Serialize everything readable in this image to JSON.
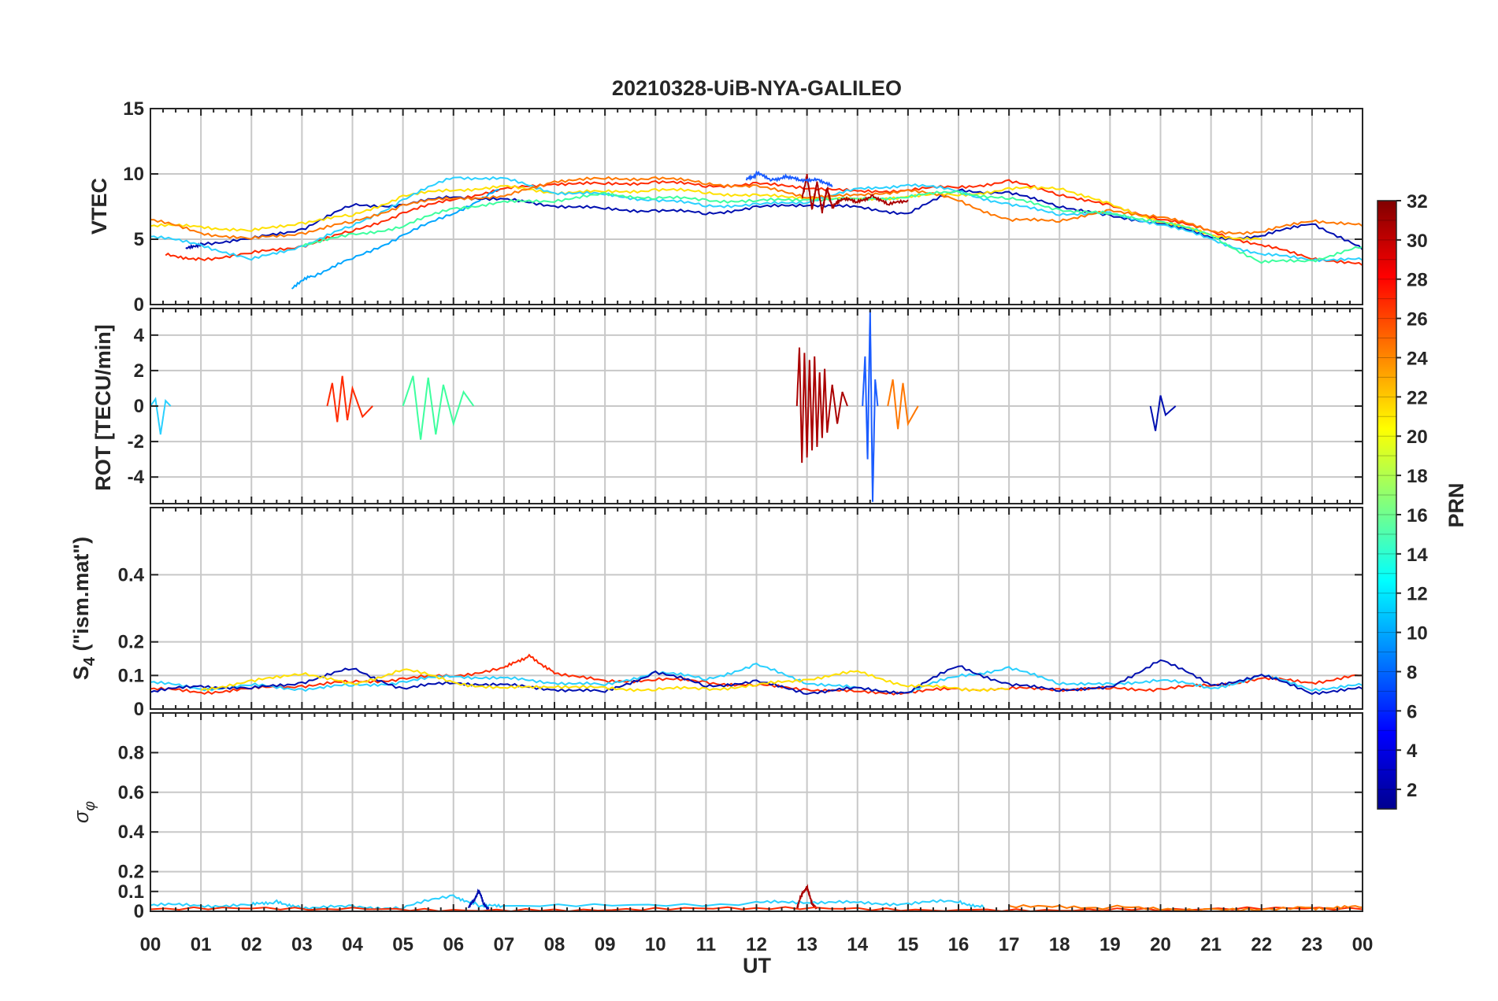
{
  "chart_data": {
    "type": "line",
    "title": "20210328-UiB-NYA-GALILEO",
    "xlabel": "UT",
    "x_ticks": [
      "00",
      "01",
      "02",
      "03",
      "04",
      "05",
      "06",
      "07",
      "08",
      "09",
      "10",
      "11",
      "12",
      "13",
      "14",
      "15",
      "16",
      "17",
      "18",
      "19",
      "20",
      "21",
      "22",
      "23",
      "00"
    ],
    "xlim": [
      0,
      24
    ],
    "colorbar": {
      "label": "PRN",
      "range": [
        1,
        32
      ],
      "ticks": [
        "2",
        "4",
        "6",
        "8",
        "10",
        "12",
        "14",
        "16",
        "18",
        "20",
        "22",
        "24",
        "26",
        "28",
        "30",
        "32"
      ],
      "colormap": "jet"
    },
    "panels": [
      {
        "name": "vtec",
        "ylabel": "VTEC",
        "ylim": [
          0,
          15
        ],
        "y_ticks": [
          "0",
          "5",
          "10",
          "15"
        ],
        "series": [
          {
            "color": "#ff2a00",
            "x": [
              0.3,
              1,
              2,
              3,
              4,
              5,
              6,
              7,
              8,
              9,
              10,
              11,
              12,
              13,
              14,
              15,
              16,
              17,
              18,
              19,
              20,
              21,
              22,
              23,
              24
            ],
            "y": [
              3.8,
              3.5,
              3.9,
              4.5,
              5.6,
              7.0,
              8.1,
              8.8,
              9.3,
              9.2,
              9.4,
              9.1,
              9.2,
              9.0,
              8.6,
              8.8,
              9.0,
              9.4,
              8.5,
              7.5,
              6.6,
              5.6,
              4.5,
              3.6,
              3.0
            ]
          },
          {
            "color": "#00a6ff",
            "x": [
              2.8,
              3.2,
              4,
              5,
              6,
              6.9
            ],
            "y": [
              1.3,
              2.2,
              3.5,
              5.3,
              7.0,
              8.8
            ]
          },
          {
            "color": "#000fb0",
            "x": [
              0.7,
              1,
              2,
              3,
              4,
              5,
              6,
              7,
              8,
              9,
              10,
              11,
              12,
              13,
              14,
              15,
              16,
              17,
              18,
              19,
              20,
              21,
              22,
              23,
              24
            ],
            "y": [
              4.2,
              4.7,
              5.0,
              5.8,
              7.6,
              7.6,
              8.3,
              8.0,
              7.6,
              7.3,
              7.2,
              7.0,
              7.4,
              7.7,
              7.4,
              7.0,
              8.8,
              8.5,
              7.6,
              6.7,
              6.3,
              5.1,
              5.2,
              6.3,
              4.2
            ]
          },
          {
            "color": "#ffe000",
            "x": [
              0,
              1,
              2,
              3,
              4,
              5,
              6,
              7,
              8,
              9,
              10,
              11,
              12,
              13,
              14,
              15,
              16,
              17,
              18,
              19,
              20,
              21,
              22
            ],
            "y": [
              6.0,
              6.0,
              5.6,
              6.3,
              6.8,
              8.3,
              8.8,
              9.0,
              8.6,
              8.6,
              8.8,
              8.6,
              8.3,
              8.2,
              8.0,
              8.3,
              8.4,
              8.8,
              9.0,
              7.6,
              6.4,
              5.3,
              5.0
            ]
          },
          {
            "color": "#2ad0ff",
            "x": [
              0,
              1,
              2,
              3,
              4,
              5,
              6,
              7,
              8,
              9,
              10,
              11,
              12,
              13,
              14,
              15,
              16,
              17,
              18,
              19,
              20,
              21,
              22,
              23,
              24
            ],
            "y": [
              5.2,
              4.6,
              3.4,
              4.5,
              6.0,
              8.0,
              9.8,
              9.6,
              8.6,
              8.4,
              8.0,
              7.6,
              7.6,
              7.9,
              8.8,
              9.2,
              8.7,
              7.6,
              7.0,
              6.9,
              6.2,
              5.0,
              3.8,
              3.5,
              3.4
            ]
          },
          {
            "color": "#ff7700",
            "x": [
              0,
              1,
              2,
              3,
              4,
              5,
              6,
              7,
              8,
              9,
              10,
              11,
              12,
              13,
              14,
              15,
              16,
              17,
              18,
              19,
              20,
              21,
              22,
              23,
              24
            ],
            "y": [
              6.5,
              5.5,
              5.0,
              5.5,
              6.3,
              7.6,
              8.2,
              8.2,
              9.5,
              9.6,
              9.7,
              9.3,
              9.0,
              8.3,
              8.3,
              8.8,
              8.0,
              6.4,
              6.5,
              7.1,
              6.8,
              5.6,
              5.5,
              6.5,
              6.0
            ]
          },
          {
            "color": "#3dff9e",
            "x": [
              3,
              4,
              5,
              6,
              7,
              8,
              9,
              10,
              11,
              12,
              13,
              14,
              15,
              16,
              17,
              18,
              19,
              20,
              21,
              22,
              23,
              24
            ],
            "y": [
              4.6,
              5.3,
              6.0,
              7.4,
              7.8,
              8.0,
              8.4,
              8.2,
              8.0,
              7.9,
              8.1,
              8.0,
              8.3,
              8.6,
              8.1,
              7.3,
              6.9,
              6.4,
              5.3,
              3.2,
              3.4,
              4.4
            ]
          },
          {
            "color": "#aa0000",
            "x": [
              12.9,
              13.0,
              13.1,
              13.2,
              13.3,
              13.4,
              13.5,
              13.7,
              14.0,
              14.3,
              14.6,
              15.0
            ],
            "y": [
              8.0,
              10.0,
              7.2,
              9.5,
              7.0,
              9.0,
              7.4,
              8.1,
              7.8,
              8.4,
              7.6,
              8.0
            ]
          },
          {
            "color": "#1a5cff",
            "x": [
              11.8,
              12.0,
              12.3,
              12.6,
              12.9,
              13.2,
              13.5
            ],
            "y": [
              9.5,
              10.0,
              9.6,
              9.8,
              9.4,
              9.7,
              9.0
            ]
          }
        ]
      },
      {
        "name": "rot",
        "ylabel": "ROT [TECU/min]",
        "ylim": [
          -5.5,
          5.5
        ],
        "y_ticks": [
          "-4",
          "-2",
          "0",
          "2",
          "4"
        ],
        "series": [
          {
            "color": "#aa0000",
            "x": [
              12.8,
              12.85,
              12.9,
              12.95,
              13.0,
              13.05,
              13.1,
              13.15,
              13.2,
              13.25,
              13.3,
              13.35,
              13.4,
              13.5,
              13.6,
              13.7,
              13.8
            ],
            "y": [
              0,
              3.3,
              -3.2,
              3.0,
              -2.9,
              2.6,
              -2.5,
              2.8,
              -2.3,
              1.9,
              -1.8,
              2.1,
              -1.5,
              1.2,
              -1.0,
              0.8,
              0
            ]
          },
          {
            "color": "#1a5cff",
            "x": [
              14.1,
              14.15,
              14.2,
              14.25,
              14.3,
              14.35,
              14.4
            ],
            "y": [
              0,
              2.8,
              -3.0,
              5.4,
              -5.4,
              1.5,
              0
            ]
          },
          {
            "color": "#3dff9e",
            "x": [
              5.0,
              5.2,
              5.35,
              5.5,
              5.65,
              5.8,
              6.0,
              6.2,
              6.4
            ],
            "y": [
              0,
              1.7,
              -1.9,
              1.6,
              -1.6,
              1.2,
              -1.0,
              0.8,
              0
            ]
          },
          {
            "color": "#ff2a00",
            "x": [
              3.5,
              3.6,
              3.7,
              3.8,
              3.9,
              4.0,
              4.2,
              4.4
            ],
            "y": [
              0,
              1.3,
              -0.9,
              1.7,
              -0.8,
              1.0,
              -0.6,
              0
            ]
          },
          {
            "color": "#ff7700",
            "x": [
              14.6,
              14.7,
              14.8,
              14.9,
              15.0,
              15.2
            ],
            "y": [
              0,
              1.5,
              -1.3,
              1.3,
              -1.0,
              0
            ]
          },
          {
            "color": "#000fb0",
            "x": [
              19.8,
              19.9,
              20.0,
              20.1,
              20.3
            ],
            "y": [
              0,
              -1.4,
              0.6,
              -0.5,
              0
            ]
          },
          {
            "color": "#2ad0ff",
            "x": [
              0,
              0.1,
              0.2,
              0.3,
              0.4
            ],
            "y": [
              0,
              0.4,
              -1.6,
              0.3,
              0
            ]
          }
        ]
      },
      {
        "name": "s4",
        "ylabel": "S4 (\"ism.mat\")",
        "ylim": [
          0,
          0.6
        ],
        "y_ticks": [
          "0",
          "0.1",
          "0.2",
          "0.4"
        ],
        "series": [
          {
            "color": "#ff2a00",
            "x": [
              0,
              1,
              2,
              3,
              4,
              5,
              6,
              7,
              7.5,
              8,
              9,
              10,
              11,
              12,
              13,
              14,
              15,
              16,
              17,
              18,
              19,
              20,
              21,
              22,
              23,
              24
            ],
            "y": [
              0.06,
              0.05,
              0.06,
              0.07,
              0.08,
              0.09,
              0.1,
              0.12,
              0.16,
              0.11,
              0.08,
              0.09,
              0.08,
              0.07,
              0.06,
              0.05,
              0.05,
              0.06,
              0.06,
              0.06,
              0.06,
              0.06,
              0.07,
              0.09,
              0.08,
              0.1
            ]
          },
          {
            "color": "#2ad0ff",
            "x": [
              0,
              1,
              2,
              3,
              4,
              5,
              6,
              7,
              8,
              9,
              10,
              11,
              12,
              13,
              14,
              15,
              16,
              17,
              18,
              19,
              20,
              21,
              22,
              23,
              24
            ],
            "y": [
              0.08,
              0.06,
              0.07,
              0.06,
              0.07,
              0.08,
              0.1,
              0.09,
              0.08,
              0.07,
              0.11,
              0.09,
              0.13,
              0.08,
              0.06,
              0.05,
              0.1,
              0.12,
              0.08,
              0.07,
              0.09,
              0.06,
              0.1,
              0.06,
              0.07
            ]
          },
          {
            "color": "#000fb0",
            "x": [
              0,
              1,
              2,
              3,
              4,
              5,
              6,
              7,
              8,
              9,
              10,
              11,
              12,
              13,
              14,
              15,
              16,
              17,
              18,
              19,
              20,
              21,
              22,
              23,
              24
            ],
            "y": [
              0.05,
              0.07,
              0.06,
              0.08,
              0.12,
              0.06,
              0.08,
              0.07,
              0.06,
              0.05,
              0.11,
              0.07,
              0.08,
              0.05,
              0.06,
              0.05,
              0.13,
              0.07,
              0.06,
              0.06,
              0.15,
              0.07,
              0.1,
              0.05,
              0.06
            ]
          },
          {
            "color": "#ffe000",
            "x": [
              1,
              2,
              3,
              4,
              5,
              6,
              7,
              8,
              9,
              10,
              11,
              12,
              13,
              14,
              15,
              16,
              17
            ],
            "y": [
              0.06,
              0.08,
              0.11,
              0.07,
              0.12,
              0.08,
              0.06,
              0.07,
              0.06,
              0.06,
              0.06,
              0.07,
              0.09,
              0.11,
              0.07,
              0.06,
              0.06
            ]
          }
        ]
      },
      {
        "name": "sigma",
        "ylabel": "σφ",
        "ylim": [
          0,
          1
        ],
        "y_ticks": [
          "0",
          "0.1",
          "0.2",
          "0.4",
          "0.6",
          "0.8"
        ],
        "series": [
          {
            "color": "#2ad0ff",
            "x": [
              0,
              1,
              2,
              2.5,
              3,
              4,
              5,
              6,
              6.5,
              7,
              12,
              13,
              14,
              15,
              16,
              16.5
            ],
            "y": [
              0.03,
              0.03,
              0.03,
              0.05,
              0.02,
              0.02,
              0.02,
              0.08,
              0.03,
              0.02,
              0.04,
              0.05,
              0.04,
              0.04,
              0.05,
              0.02
            ]
          },
          {
            "color": "#000fb0",
            "x": [
              6.3,
              6.4,
              6.5,
              6.6,
              6.7
            ],
            "y": [
              0.02,
              0.05,
              0.11,
              0.03,
              0.02
            ]
          },
          {
            "color": "#aa0000",
            "x": [
              12.8,
              12.9,
              13.0,
              13.1,
              13.2
            ],
            "y": [
              0.02,
              0.08,
              0.13,
              0.03,
              0.02
            ]
          },
          {
            "color": "#ff2a00",
            "x": [
              0,
              4,
              8,
              12,
              16,
              20,
              24
            ],
            "y": [
              0.01,
              0.01,
              0.01,
              0.01,
              0.01,
              0.01,
              0.01
            ]
          },
          {
            "color": "#ff7700",
            "x": [
              17,
              19,
              21,
              23,
              24
            ],
            "y": [
              0.02,
              0.02,
              0.01,
              0.02,
              0.02
            ]
          }
        ]
      }
    ]
  }
}
